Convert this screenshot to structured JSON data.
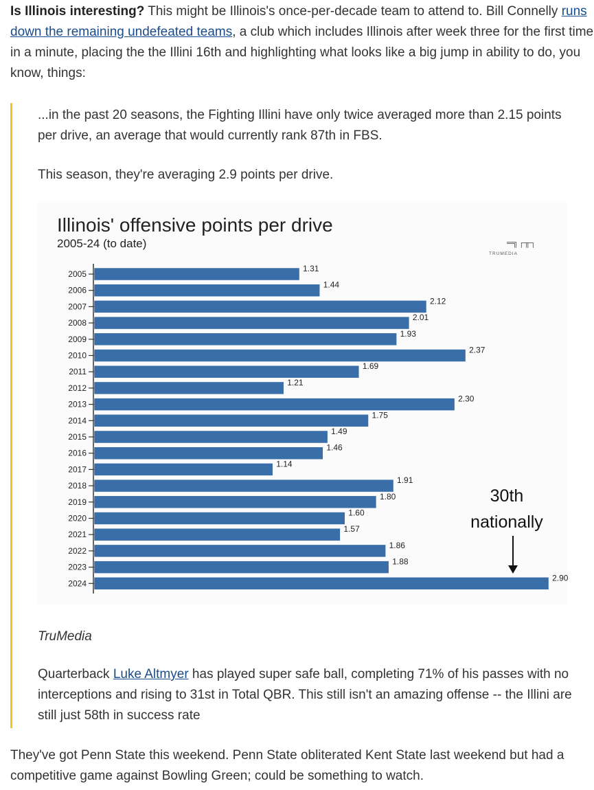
{
  "intro": {
    "bold": "Is Illinois interesting?",
    "text1": " This might be Illinois's once-per-decade team to attend to. Bill Connelly ",
    "link": "runs down the remaining undefeated teams",
    "text2": ", a club which includes Illinois after week three for the first time in a minute, placing the the Illini 16th and highlighting what looks like a big jump in ability to do, you know, things:"
  },
  "quote": {
    "p1": "...in the past 20 seasons, the Fighting Illini have only twice averaged more than 2.15 points per drive, an average that would currently rank 87th in FBS.",
    "p2": "This season, they're averaging 2.9 points per drive.",
    "credit": "TruMedia",
    "p3_before": "Quarterback ",
    "p3_link": "Luke Altmyer",
    "p3_after": " has played super safe ball, completing 71% of his passes with no interceptions and rising to 31st in Total QBR. This still isn't an amazing offense -- the Illini are still just 58th in success rate"
  },
  "outro": "They've got Penn State this weekend. Penn State obliterated Kent State last weekend but had a competitive game against Bowling Green; could be something to watch.",
  "chart_data": {
    "type": "bar",
    "orientation": "horizontal",
    "title": "Illinois' offensive points per drive",
    "subtitle": "2005-24 (to date)",
    "logo": "TRUMEDIA",
    "bar_color": "#3a6ea8",
    "categories": [
      "2005",
      "2006",
      "2007",
      "2008",
      "2009",
      "2010",
      "2011",
      "2012",
      "2013",
      "2014",
      "2015",
      "2016",
      "2017",
      "2018",
      "2019",
      "2020",
      "2021",
      "2022",
      "2023",
      "2024"
    ],
    "values": [
      1.31,
      1.44,
      2.12,
      2.01,
      1.93,
      2.37,
      1.69,
      1.21,
      2.3,
      1.75,
      1.49,
      1.46,
      1.14,
      1.91,
      1.8,
      1.6,
      1.57,
      1.86,
      1.88,
      2.9
    ],
    "labels": [
      "1.31",
      "1.44",
      "2.12",
      "2.01",
      "1.93",
      "2.37",
      "1.69",
      "1.21",
      "2.30",
      "1.75",
      "1.49",
      "1.46",
      "1.14",
      "1.91",
      "1.80",
      "1.60",
      "1.57",
      "1.86",
      "1.88",
      "2.90"
    ],
    "annotation": {
      "line1": "30th",
      "line2": "nationally"
    },
    "xlim": [
      0,
      2.9
    ]
  }
}
